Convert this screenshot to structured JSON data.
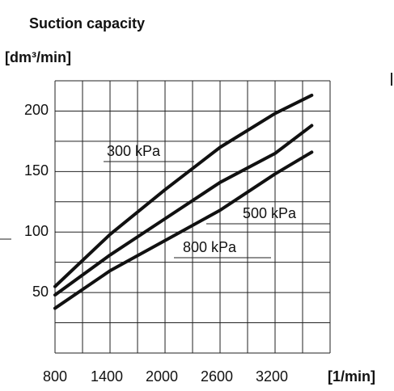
{
  "chart_data": {
    "type": "line",
    "title": "Suction capacity",
    "y_label": "[dm³/min]",
    "x_label": "[1/min]",
    "x": [
      800,
      1400,
      2000,
      2600,
      3200,
      3600
    ],
    "series": [
      {
        "name": "300 kPa",
        "color": "#111111",
        "values": [
          55,
          98,
          135,
          170,
          198,
          213
        ]
      },
      {
        "name": "500 kPa",
        "color": "#111111",
        "values": [
          48,
          81,
          111,
          141,
          165,
          188
        ]
      },
      {
        "name": "800 kPa",
        "color": "#111111",
        "values": [
          37,
          68,
          93,
          118,
          148,
          166
        ]
      }
    ],
    "xlim": [
      800,
      3800
    ],
    "xticks": [
      800,
      1400,
      2000,
      2600,
      3200
    ],
    "ylim": [
      0,
      225
    ],
    "yticks": [
      50,
      100,
      150,
      200
    ],
    "grid_step_x": 300,
    "grid_step_y": 25,
    "grid": true
  }
}
